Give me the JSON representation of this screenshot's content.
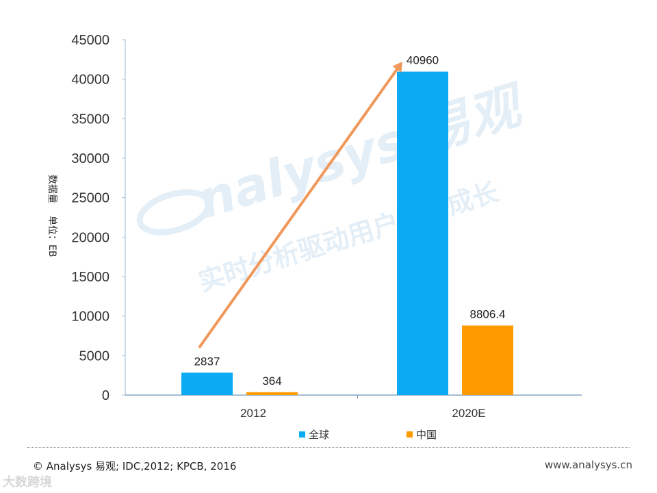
{
  "chart_data": {
    "type": "bar",
    "categories": [
      "2012",
      "2020E"
    ],
    "series": [
      {
        "name": "全球",
        "values": [
          2837,
          40960
        ],
        "labels": [
          "2837",
          "40960"
        ],
        "color": "#0AABF2"
      },
      {
        "name": "中国",
        "values": [
          364,
          8806.4
        ],
        "labels": [
          "364",
          "8806.4"
        ],
        "color": "#FF9B00"
      }
    ],
    "ylabel": [
      "数据量",
      "单位：EB"
    ],
    "ylim": [
      0,
      45000
    ],
    "yticks": [
      0,
      5000,
      10000,
      15000,
      20000,
      25000,
      30000,
      35000,
      40000,
      45000
    ],
    "grid": false,
    "legend": "bottom",
    "trend_arrow": {
      "from": [
        2012,
        2837
      ],
      "to": [
        2020,
        45000
      ],
      "color": "#F0975A"
    }
  },
  "watermark": {
    "brand": "nalysys 易观",
    "slogan": "实时分析驱动用户资产成长",
    "color": "#E4EEF7"
  },
  "footer": {
    "source": "© Analysys 易观;  IDC,2012;  KPCB, 2016",
    "website": "www.analysys.cn",
    "corner_mark": "大数跨境"
  }
}
